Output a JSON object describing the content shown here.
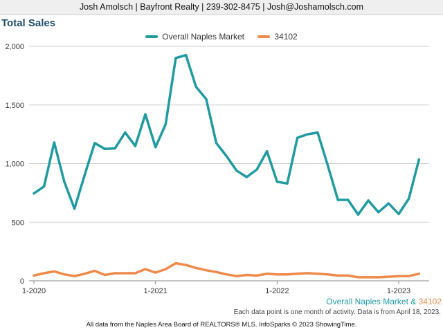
{
  "header": {
    "contact": "Josh Amolsch | Bayfront Realty | 239-302-8475 | Josh@Joshamolsch.com"
  },
  "chart_data": {
    "type": "line",
    "title": "Total Sales",
    "xlabel": "",
    "ylabel": "",
    "ylim": [
      0,
      2000
    ],
    "yticks": [
      0,
      500,
      1000,
      1500,
      2000
    ],
    "ytick_labels": [
      "0",
      "500",
      "1,000",
      "1,500",
      "2,000"
    ],
    "xticks": [
      {
        "index": 0,
        "label": "1-2020"
      },
      {
        "index": 12,
        "label": "1-2021"
      },
      {
        "index": 24,
        "label": "1-2022"
      },
      {
        "index": 36,
        "label": "1-2023"
      }
    ],
    "grid": true,
    "legend_position": "top-center",
    "x": [
      "2020-01",
      "2020-02",
      "2020-03",
      "2020-04",
      "2020-05",
      "2020-06",
      "2020-07",
      "2020-08",
      "2020-09",
      "2020-10",
      "2020-11",
      "2020-12",
      "2021-01",
      "2021-02",
      "2021-03",
      "2021-04",
      "2021-05",
      "2021-06",
      "2021-07",
      "2021-08",
      "2021-09",
      "2021-10",
      "2021-11",
      "2021-12",
      "2022-01",
      "2022-02",
      "2022-03",
      "2022-04",
      "2022-05",
      "2022-06",
      "2022-07",
      "2022-08",
      "2022-09",
      "2022-10",
      "2022-11",
      "2022-12",
      "2023-01",
      "2023-02",
      "2023-03"
    ],
    "series": [
      {
        "name": "Overall Naples Market",
        "color": "#1f9aa0",
        "values": [
          745,
          805,
          1180,
          845,
          615,
          900,
          1175,
          1125,
          1130,
          1265,
          1150,
          1420,
          1140,
          1335,
          1900,
          1925,
          1655,
          1550,
          1175,
          1065,
          940,
          885,
          950,
          1105,
          845,
          830,
          1220,
          1250,
          1265,
          985,
          690,
          690,
          565,
          685,
          585,
          660,
          570,
          700,
          1035
        ]
      },
      {
        "name": "34102",
        "color": "#ee8a4a",
        "values": [
          45,
          65,
          80,
          55,
          40,
          60,
          85,
          50,
          65,
          65,
          65,
          100,
          70,
          100,
          150,
          135,
          110,
          90,
          75,
          55,
          40,
          50,
          45,
          60,
          55,
          55,
          60,
          65,
          60,
          55,
          45,
          45,
          30,
          30,
          30,
          35,
          40,
          40,
          60
        ]
      }
    ]
  },
  "caption": {
    "series_a": "Overall Naples Market",
    "amp": " & ",
    "series_b": "34102",
    "note": "Each data point is one month of activity. Data is from April 18, 2023."
  },
  "footer": {
    "text": "All data from the Naples Area Board of REALTORS® MLS. InfoSparks © 2023 ShowingTime."
  }
}
